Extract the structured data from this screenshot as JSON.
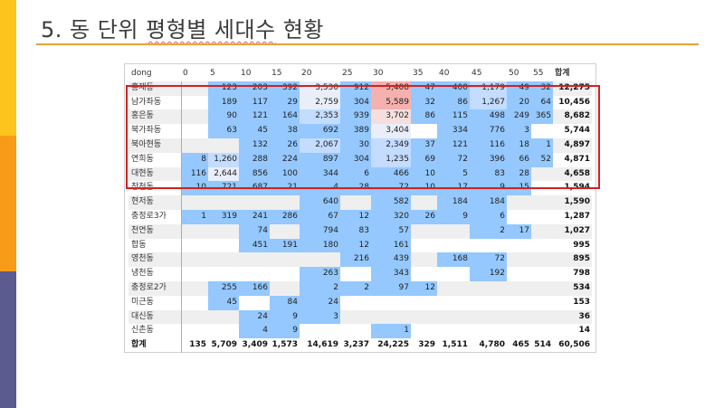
{
  "slide": {
    "title_prefix": "5. 동 단위 ",
    "title_underlined": "평형별 세대수",
    "title_suffix": " 현황",
    "accent_colors": [
      "#fcc41d",
      "#f79b19",
      "#5b5b8f"
    ],
    "line_color": "#e8a23a"
  },
  "table": {
    "corner_label": "dong",
    "columns": [
      "0",
      "5",
      "10",
      "15",
      "20",
      "25",
      "30",
      "35",
      "40",
      "45",
      "50",
      "55"
    ],
    "total_label": "합계",
    "rows": [
      {
        "name": "홍제동",
        "values": [
          "",
          "123",
          "203",
          "392",
          "3,530",
          "912",
          "5,408",
          "47",
          "400",
          "1,179",
          "49",
          "32"
        ],
        "total": "12,275"
      },
      {
        "name": "남가좌동",
        "values": [
          "",
          "189",
          "117",
          "29",
          "2,759",
          "304",
          "5,589",
          "32",
          "86",
          "1,267",
          "20",
          "64"
        ],
        "total": "10,456"
      },
      {
        "name": "홍은동",
        "values": [
          "",
          "90",
          "121",
          "164",
          "2,353",
          "939",
          "3,702",
          "86",
          "115",
          "498",
          "249",
          "365"
        ],
        "total": "8,682"
      },
      {
        "name": "북가좌동",
        "values": [
          "",
          "63",
          "45",
          "38",
          "692",
          "389",
          "3,404",
          "",
          "334",
          "776",
          "3",
          ""
        ],
        "total": "5,744"
      },
      {
        "name": "북아현동",
        "values": [
          "",
          "",
          "132",
          "26",
          "2,067",
          "30",
          "2,349",
          "37",
          "121",
          "116",
          "18",
          "1"
        ],
        "total": "4,897"
      },
      {
        "name": "연희동",
        "values": [
          "8",
          "1,260",
          "288",
          "224",
          "897",
          "304",
          "1,235",
          "69",
          "72",
          "396",
          "66",
          "52"
        ],
        "total": "4,871"
      },
      {
        "name": "대현동",
        "values": [
          "116",
          "2,644",
          "856",
          "100",
          "344",
          "6",
          "466",
          "10",
          "5",
          "83",
          "28",
          ""
        ],
        "total": "4,658"
      },
      {
        "name": "창천동",
        "values": [
          "10",
          "721",
          "687",
          "21",
          "4",
          "28",
          "72",
          "10",
          "17",
          "9",
          "15",
          ""
        ],
        "total": "1,594"
      },
      {
        "name": "현저동",
        "values": [
          "",
          "",
          "",
          "",
          "640",
          "",
          "582",
          "",
          "184",
          "184",
          "",
          ""
        ],
        "total": "1,590"
      },
      {
        "name": "충정로3가",
        "values": [
          "1",
          "319",
          "241",
          "286",
          "67",
          "12",
          "320",
          "26",
          "9",
          "6",
          "",
          ""
        ],
        "total": "1,287"
      },
      {
        "name": "천연동",
        "values": [
          "",
          "",
          "74",
          "",
          "794",
          "83",
          "57",
          "",
          "",
          "2",
          "17",
          ""
        ],
        "total": "1,027"
      },
      {
        "name": "합동",
        "values": [
          "",
          "",
          "451",
          "191",
          "180",
          "12",
          "161",
          "",
          "",
          "",
          "",
          ""
        ],
        "total": "995"
      },
      {
        "name": "영천동",
        "values": [
          "",
          "",
          "",
          "",
          "",
          "216",
          "439",
          "",
          "168",
          "72",
          "",
          ""
        ],
        "total": "895"
      },
      {
        "name": "냉천동",
        "values": [
          "",
          "",
          "",
          "",
          "263",
          "",
          "343",
          "",
          "",
          "192",
          "",
          ""
        ],
        "total": "798"
      },
      {
        "name": "충정로2가",
        "values": [
          "",
          "255",
          "166",
          "",
          "2",
          "2",
          "97",
          "12",
          "",
          "",
          "",
          ""
        ],
        "total": "534"
      },
      {
        "name": "미근동",
        "values": [
          "",
          "45",
          "",
          "84",
          "24",
          "",
          "",
          "",
          "",
          "",
          "",
          ""
        ],
        "total": "153"
      },
      {
        "name": "대신동",
        "values": [
          "",
          "",
          "24",
          "9",
          "3",
          "",
          "",
          "",
          "",
          "",
          "",
          ""
        ],
        "total": "36"
      },
      {
        "name": "신촌동",
        "values": [
          "",
          "",
          "4",
          "9",
          "",
          "",
          "1",
          "",
          "",
          "",
          "",
          ""
        ],
        "total": "14"
      }
    ],
    "footer": {
      "name": "합계",
      "values": [
        "135",
        "5,709",
        "3,409",
        "1,573",
        "14,619",
        "3,237",
        "24,225",
        "329",
        "1,511",
        "4,780",
        "465",
        "514"
      ],
      "total": "60,506"
    }
  }
}
